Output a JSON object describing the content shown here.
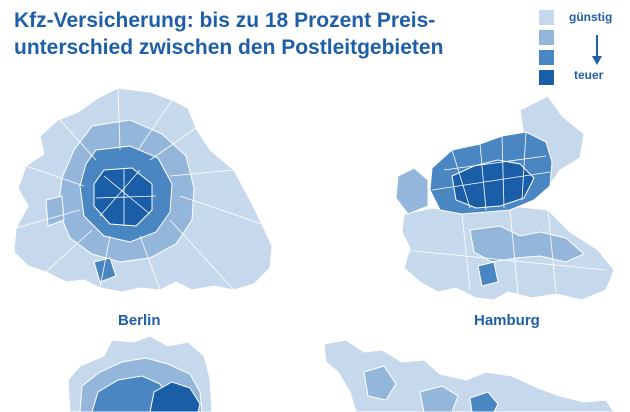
{
  "title": {
    "line1": "Kfz-Versicherung: bis zu 18 Prozent Preis-",
    "line2": "unterschied zwischen den Postleitgebieten"
  },
  "legend": {
    "low_label": "günstig",
    "high_label": "teuer",
    "colors": [
      "#c6d9ec",
      "#94b6da",
      "#4a86c2",
      "#1a5ea8"
    ]
  },
  "maps": {
    "berlin": {
      "label": "Berlin"
    },
    "hamburg": {
      "label": "Hamburg"
    }
  }
}
